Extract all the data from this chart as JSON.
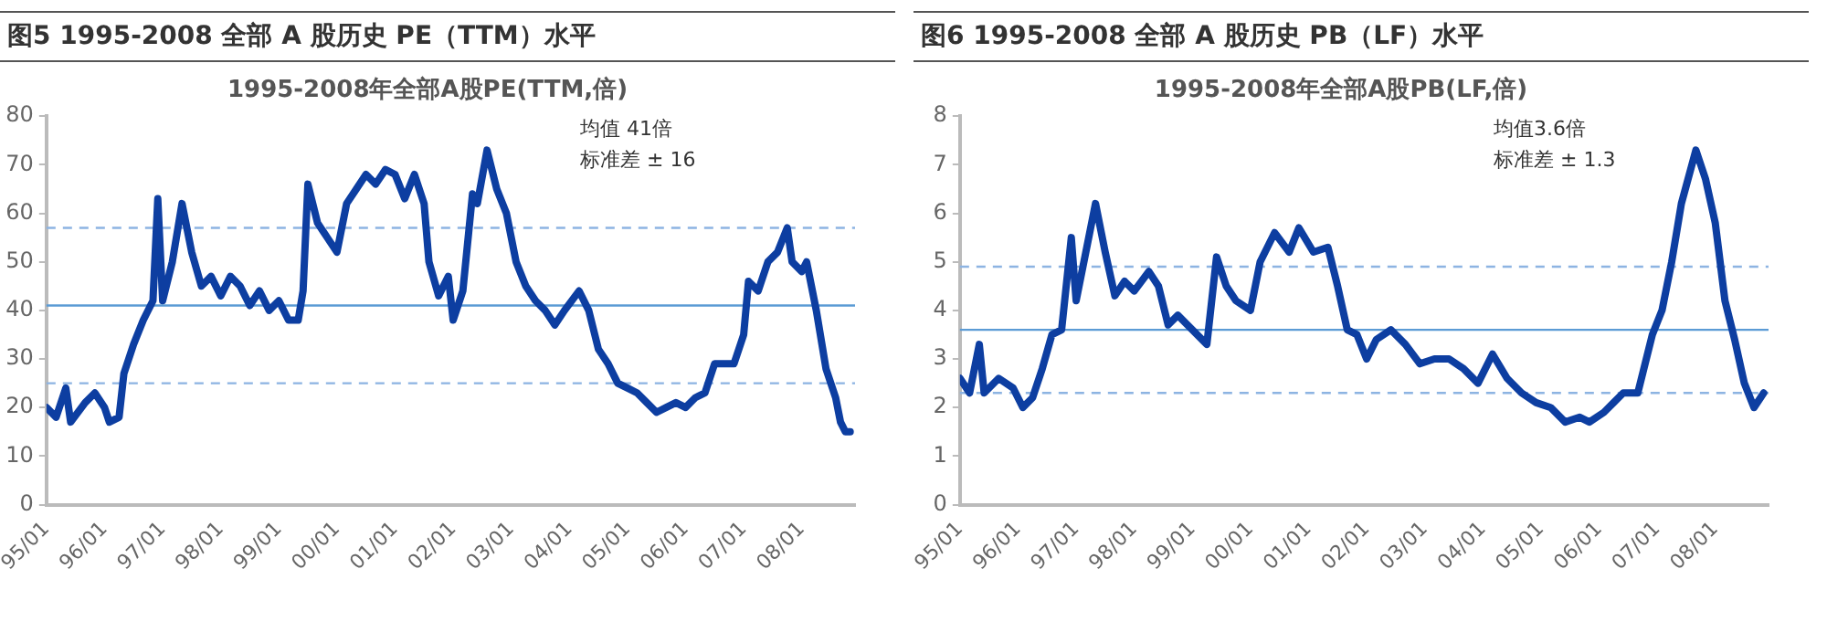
{
  "chart_data": [
    {
      "type": "line",
      "title": "图5 1995-2008 全部 A 股历史 PE（TTM）水平",
      "subtitle": "1995-2008年全部A股PE(TTM,倍)",
      "annotations": [
        "均值 41倍",
        "标准差 ± 16"
      ],
      "grid": false,
      "legend": false,
      "marker": "none",
      "line_style": "solid",
      "x": [
        "1995-01",
        "1995-03",
        "1995-05",
        "1995-06",
        "1995-09",
        "1995-11",
        "1996-01",
        "1996-02",
        "1996-04",
        "1996-05",
        "1996-07",
        "1996-09",
        "1996-11",
        "1996-12",
        "1997-01",
        "1997-03",
        "1997-05",
        "1997-07",
        "1997-09",
        "1997-11",
        "1998-01",
        "1998-03",
        "1998-05",
        "1998-07",
        "1998-09",
        "1998-11",
        "1999-01",
        "1999-03",
        "1999-05",
        "1999-06",
        "1999-07",
        "1999-09",
        "1999-11",
        "2000-01",
        "2000-03",
        "2000-05",
        "2000-07",
        "2000-09",
        "2000-11",
        "2001-01",
        "2001-03",
        "2001-05",
        "2001-07",
        "2001-08",
        "2001-10",
        "2001-12",
        "2002-01",
        "2002-03",
        "2002-05",
        "2002-06",
        "2002-08",
        "2002-10",
        "2002-12",
        "2003-02",
        "2003-04",
        "2003-06",
        "2003-08",
        "2003-10",
        "2003-12",
        "2004-03",
        "2004-05",
        "2004-07",
        "2004-09",
        "2004-11",
        "2005-01",
        "2005-03",
        "2005-05",
        "2005-07",
        "2005-09",
        "2005-11",
        "2006-01",
        "2006-03",
        "2006-05",
        "2006-07",
        "2006-09",
        "2006-11",
        "2007-01",
        "2007-02",
        "2007-04",
        "2007-06",
        "2007-08",
        "2007-10",
        "2007-11",
        "2008-01",
        "2008-02",
        "2008-04",
        "2008-06",
        "2008-08",
        "2008-09",
        "2008-10",
        "2008-11"
      ],
      "series": [
        {
          "color": "#0d3ea1",
          "values": [
            20,
            18,
            24,
            17,
            21,
            23,
            20,
            17,
            18,
            27,
            33,
            38,
            42,
            63,
            42,
            50,
            62,
            52,
            45,
            47,
            43,
            47,
            45,
            41,
            44,
            40,
            42,
            38,
            38,
            44,
            66,
            58,
            55,
            52,
            62,
            65,
            68,
            66,
            69,
            68,
            63,
            68,
            62,
            50,
            43,
            47,
            38,
            44,
            64,
            62,
            73,
            65,
            60,
            50,
            45,
            42,
            40,
            37,
            40,
            44,
            40,
            32,
            29,
            25,
            24,
            23,
            21,
            19,
            20,
            21,
            20,
            22,
            23,
            29,
            29,
            29,
            35,
            46,
            44,
            50,
            52,
            57,
            50,
            48,
            50,
            40,
            28,
            22,
            17,
            15,
            15
          ]
        }
      ],
      "xlim": [
        "1995-01",
        "2008-12"
      ],
      "xticks": [
        {
          "value": "1995-01",
          "label": "95/01"
        },
        {
          "value": "1996-01",
          "label": "96/01"
        },
        {
          "value": "1997-01",
          "label": "97/01"
        },
        {
          "value": "1998-01",
          "label": "98/01"
        },
        {
          "value": "1999-01",
          "label": "99/01"
        },
        {
          "value": "2000-01",
          "label": "00/01"
        },
        {
          "value": "2001-01",
          "label": "01/01"
        },
        {
          "value": "2002-01",
          "label": "02/01"
        },
        {
          "value": "2003-01",
          "label": "03/01"
        },
        {
          "value": "2004-01",
          "label": "04/01"
        },
        {
          "value": "2005-01",
          "label": "05/01"
        },
        {
          "value": "2006-01",
          "label": "06/01"
        },
        {
          "value": "2007-01",
          "label": "07/01"
        },
        {
          "value": "2008-01",
          "label": "08/01"
        }
      ],
      "ylim": [
        0,
        80
      ],
      "yticks": [
        0,
        10,
        20,
        30,
        40,
        50,
        60,
        70,
        80
      ],
      "ref_lines": [
        {
          "axis": "y",
          "value": 41,
          "color": "#5b9bd5",
          "line_style": "solid"
        },
        {
          "axis": "y",
          "value": 57,
          "color": "#8db4e2",
          "line_style": "dashed"
        },
        {
          "axis": "y",
          "value": 25,
          "color": "#8db4e2",
          "line_style": "dashed"
        }
      ]
    },
    {
      "type": "line",
      "title": "图6 1995-2008 全部 A 股历史 PB（LF）水平",
      "subtitle": "1995-2008年全部A股PB(LF,倍)",
      "annotations": [
        "均值3.6倍",
        "标准差 ± 1.3"
      ],
      "grid": false,
      "legend": false,
      "marker": "none",
      "line_style": "solid",
      "x": [
        "1995-01",
        "1995-03",
        "1995-05",
        "1995-06",
        "1995-09",
        "1995-12",
        "1996-02",
        "1996-04",
        "1996-06",
        "1996-08",
        "1996-10",
        "1996-12",
        "1997-01",
        "1997-05",
        "1997-07",
        "1997-09",
        "1997-11",
        "1998-01",
        "1998-04",
        "1998-06",
        "1998-08",
        "1998-10",
        "1999-01",
        "1999-04",
        "1999-06",
        "1999-08",
        "1999-10",
        "2000-01",
        "2000-03",
        "2000-06",
        "2000-09",
        "2000-11",
        "2001-02",
        "2001-05",
        "2001-07",
        "2001-09",
        "2001-11",
        "2002-01",
        "2002-03",
        "2002-06",
        "2002-09",
        "2002-12",
        "2003-03",
        "2003-06",
        "2003-09",
        "2003-12",
        "2004-03",
        "2004-06",
        "2004-09",
        "2004-12",
        "2005-03",
        "2005-06",
        "2005-09",
        "2005-11",
        "2006-02",
        "2006-04",
        "2006-06",
        "2006-09",
        "2006-12",
        "2007-02",
        "2007-04",
        "2007-06",
        "2007-09",
        "2007-11",
        "2008-01",
        "2008-03",
        "2008-05",
        "2008-07",
        "2008-09",
        "2008-11"
      ],
      "series": [
        {
          "color": "#0d3ea1",
          "values": [
            2.6,
            2.3,
            3.3,
            2.3,
            2.6,
            2.4,
            2.0,
            2.2,
            2.8,
            3.5,
            3.6,
            5.5,
            4.2,
            6.2,
            5.2,
            4.3,
            4.6,
            4.4,
            4.8,
            4.5,
            3.7,
            3.9,
            3.6,
            3.3,
            5.1,
            4.5,
            4.2,
            4.0,
            5.0,
            5.6,
            5.2,
            5.7,
            5.2,
            5.3,
            4.5,
            3.6,
            3.5,
            3.0,
            3.4,
            3.6,
            3.3,
            2.9,
            3.0,
            3.0,
            2.8,
            2.5,
            3.1,
            2.6,
            2.3,
            2.1,
            2.0,
            1.7,
            1.8,
            1.7,
            1.9,
            2.1,
            2.3,
            2.3,
            3.5,
            4.0,
            5.0,
            6.2,
            7.3,
            6.7,
            5.8,
            4.2,
            3.4,
            2.5,
            2.0,
            2.3
          ]
        }
      ],
      "xlim": [
        "1995-01",
        "2008-12"
      ],
      "xticks": [
        {
          "value": "1995-01",
          "label": "95/01"
        },
        {
          "value": "1996-01",
          "label": "96/01"
        },
        {
          "value": "1997-01",
          "label": "97/01"
        },
        {
          "value": "1998-01",
          "label": "98/01"
        },
        {
          "value": "1999-01",
          "label": "99/01"
        },
        {
          "value": "2000-01",
          "label": "00/01"
        },
        {
          "value": "2001-01",
          "label": "01/01"
        },
        {
          "value": "2002-01",
          "label": "02/01"
        },
        {
          "value": "2003-01",
          "label": "03/01"
        },
        {
          "value": "2004-01",
          "label": "04/01"
        },
        {
          "value": "2005-01",
          "label": "05/01"
        },
        {
          "value": "2006-01",
          "label": "06/01"
        },
        {
          "value": "2007-01",
          "label": "07/01"
        },
        {
          "value": "2008-01",
          "label": "08/01"
        }
      ],
      "ylim": [
        0,
        8
      ],
      "yticks": [
        0,
        1,
        2,
        3,
        4,
        5,
        6,
        7,
        8
      ],
      "ref_lines": [
        {
          "axis": "y",
          "value": 3.6,
          "color": "#5b9bd5",
          "line_style": "solid"
        },
        {
          "axis": "y",
          "value": 4.9,
          "color": "#8db4e2",
          "line_style": "dashed"
        },
        {
          "axis": "y",
          "value": 2.3,
          "color": "#8db4e2",
          "line_style": "dashed"
        }
      ]
    }
  ]
}
